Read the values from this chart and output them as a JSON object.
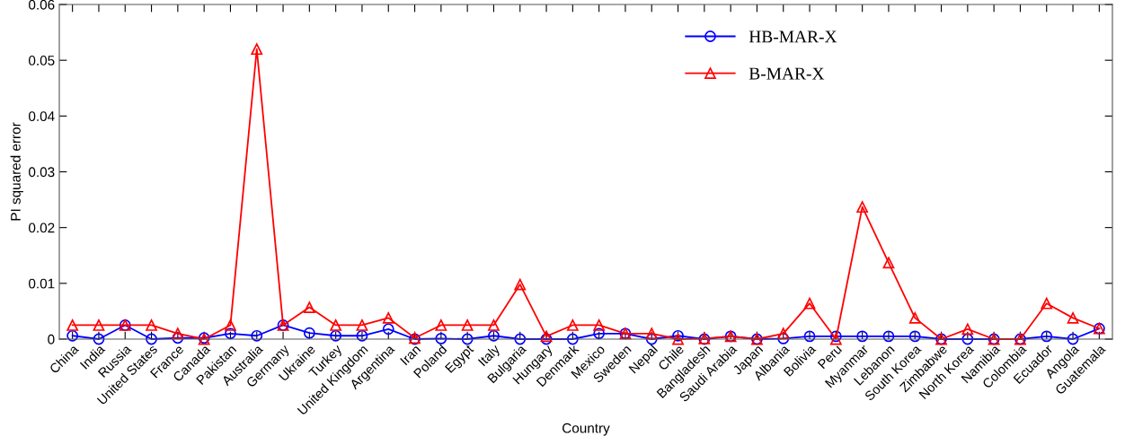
{
  "chart_data": {
    "type": "line",
    "xlabel": "Country",
    "ylabel": "PI squared error",
    "categories": [
      "China",
      "India",
      "Russia",
      "United States",
      "France",
      "Canada",
      "Pakistan",
      "Australia",
      "Germany",
      "Ukraine",
      "Turkey",
      "United Kingdom",
      "Argentina",
      "Iran",
      "Poland",
      "Egypt",
      "Italy",
      "Bulgaria",
      "Hungary",
      "Denmark",
      "Mexico",
      "Sweden",
      "Nepal",
      "Chile",
      "Bangladesh",
      "Saudi Arabia",
      "Japan",
      "Albania",
      "Bolivia",
      "Peru",
      "Myanmar",
      "Lebanon",
      "South Korea",
      "Zimbabwe",
      "North Korea",
      "Namibia",
      "Colombia",
      "Ecuador",
      "Angola",
      "Guatemala"
    ],
    "series": [
      {
        "name": "HB-MAR-X",
        "color": "#0000ff",
        "marker": "circle",
        "values": [
          0.0006,
          0,
          0.0025,
          0,
          0.0002,
          0.0002,
          0.001,
          0.0006,
          0.0025,
          0.0011,
          0.0006,
          0.0006,
          0.0018,
          0,
          0.0001,
          0,
          0.0006,
          0,
          0,
          0,
          0.001,
          0.001,
          0,
          0.0006,
          0,
          0.0005,
          0,
          0.0001,
          0.0005,
          0.0005,
          0.0005,
          0.0005,
          0.0005,
          0,
          0,
          0,
          0,
          0.0005,
          0,
          0.0019
        ]
      },
      {
        "name": "B-MAR-X",
        "color": "#ff0000",
        "marker": "triangle",
        "values": [
          0.0025,
          0.0025,
          0.0025,
          0.0025,
          0.001,
          0,
          0.0025,
          0.052,
          0.0025,
          0.0057,
          0.0025,
          0.0025,
          0.0038,
          0.0002,
          0.0025,
          0.0025,
          0.0025,
          0.0098,
          0.0005,
          0.0025,
          0.0025,
          0.001,
          0.001,
          0,
          0.0001,
          0.0005,
          0,
          0.001,
          0.0064,
          0,
          0.0237,
          0.0137,
          0.0038,
          0,
          0.0018,
          0,
          0,
          0.0064,
          0.0038,
          0.0019
        ]
      }
    ],
    "ylim": [
      0,
      0.06
    ],
    "yticks": [
      0,
      0.01,
      0.02,
      0.03,
      0.04,
      0.05,
      0.06
    ],
    "grid": false,
    "legend": "top right",
    "line_style": "solid"
  }
}
